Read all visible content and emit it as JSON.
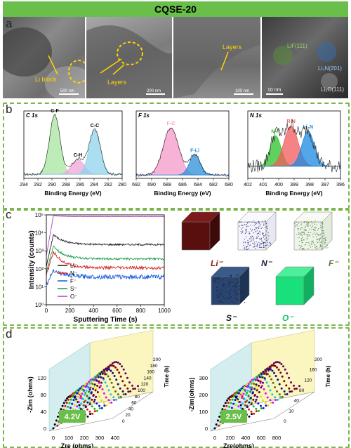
{
  "figure_title": "CQSE-20",
  "panel_letters": {
    "a": "a",
    "b": "b",
    "c": "c",
    "d": "d"
  },
  "tem_annotations": {
    "li_block": "Li block",
    "layers_1": "Layers",
    "layers_2": "Layers",
    "lif_label": "LiF(111)",
    "li3n_label": "Li₃N(201)",
    "li2o_label": "Li₂O(111)",
    "scale_1": "500 nm",
    "scale_2": "200 nm",
    "scale_3": "100 nm",
    "scale_4": "10 nm"
  },
  "colors": {
    "banner": "#6abf4b",
    "dash_border": "#7ab648",
    "li": "#8b1a1a",
    "n": "#1a1a5e",
    "f": "#5a7d3a",
    "s": "#2a4a7a",
    "o": "#19e07a"
  },
  "cube_labels": {
    "li": "Li⁻",
    "n": "N⁻",
    "f": "F⁻",
    "s": "S⁻",
    "o": "O⁻"
  },
  "chart_data": [
    {
      "type": "line",
      "title": "C 1s",
      "xlabel": "Binding Energy (eV)",
      "xlim": [
        294,
        280
      ],
      "x_ticks": [
        294,
        292,
        290,
        288,
        286,
        284,
        282,
        280
      ],
      "series": [
        {
          "name": "C-F",
          "center": 289.6,
          "height": 0.88,
          "width": 0.75,
          "color": "#a8e6a0"
        },
        {
          "name": "C-H",
          "center": 286.3,
          "height": 0.22,
          "width": 0.9,
          "color": "#f0a6d8"
        },
        {
          "name": "C-C",
          "center": 283.9,
          "height": 0.66,
          "width": 0.8,
          "color": "#8fd3ec"
        }
      ]
    },
    {
      "type": "line",
      "title": "F 1s",
      "xlabel": "Binding Energy (eV)",
      "xlim": [
        692,
        680
      ],
      "x_ticks": [
        692,
        690,
        688,
        686,
        684,
        682,
        680
      ],
      "series": [
        {
          "name": "F-C",
          "center": 687.5,
          "height": 0.7,
          "width": 1.0,
          "color": "#f49ac8"
        },
        {
          "name": "F-Li",
          "center": 684.4,
          "height": 0.3,
          "width": 0.7,
          "color": "#2a8fd8"
        }
      ]
    },
    {
      "type": "line",
      "title": "N 1s",
      "xlabel": "Binding Energy (eV)",
      "xlim": [
        402,
        396
      ],
      "x_ticks": [
        402,
        401,
        400,
        399,
        398,
        397,
        396
      ],
      "series": [
        {
          "name": "N-H",
          "center": 400.2,
          "height": 0.45,
          "width": 0.35,
          "color": "#2ac22a"
        },
        {
          "name": "R-N",
          "center": 399.2,
          "height": 0.6,
          "width": 0.45,
          "color": "#f25a5a"
        },
        {
          "name": "Li₃N",
          "center": 398.1,
          "height": 0.52,
          "width": 0.4,
          "color": "#1a8ae0"
        }
      ]
    },
    {
      "type": "line",
      "xlabel": "Sputtering Time (s)",
      "ylabel": "Intensity (counts)",
      "xlim": [
        0,
        1000
      ],
      "x_ticks": [
        0,
        200,
        400,
        600,
        800,
        1000
      ],
      "ylim_log": [
        0,
        5
      ],
      "y_tick_labels": [
        "10⁰",
        "10¹",
        "10²",
        "10³",
        "10⁴",
        "10⁵"
      ],
      "series": [
        {
          "name": "Li⁻",
          "color": "#202020",
          "peak": 3.9,
          "end": 3.35
        },
        {
          "name": "N⁻",
          "color": "#d42020",
          "peak": 2.95,
          "end": 2.05
        },
        {
          "name": "F⁻",
          "color": "#1a5ad8",
          "peak": 1.95,
          "end": 1.55
        },
        {
          "name": "S⁻",
          "color": "#1a9a4a",
          "peak": 3.25,
          "end": 2.55
        },
        {
          "name": "O⁻",
          "color": "#b040c0",
          "peak": 4.95,
          "end": 4.9
        }
      ]
    },
    {
      "type": "line",
      "badge": "4.2V",
      "xlabel": "Zre (ohms)",
      "ylabel": "-Zim (ohms)",
      "zlabel": "Time (h)",
      "x_ticks": [
        0,
        100,
        200,
        300,
        400
      ],
      "y_ticks": [
        0,
        40,
        80,
        120
      ],
      "z_ticks": [
        0,
        20,
        40,
        60,
        80,
        100,
        120,
        140,
        160,
        180,
        200
      ]
    },
    {
      "type": "line",
      "badge": "2.5V",
      "xlabel": "Zre(ohms)",
      "ylabel": "-Zim(ohms)",
      "zlabel": "Time (h)",
      "x_ticks": [
        0,
        200,
        400,
        600,
        800
      ],
      "y_ticks": [
        0,
        100,
        200,
        300
      ],
      "z_ticks": [
        0,
        10,
        40,
        80,
        120,
        160,
        200
      ]
    }
  ]
}
